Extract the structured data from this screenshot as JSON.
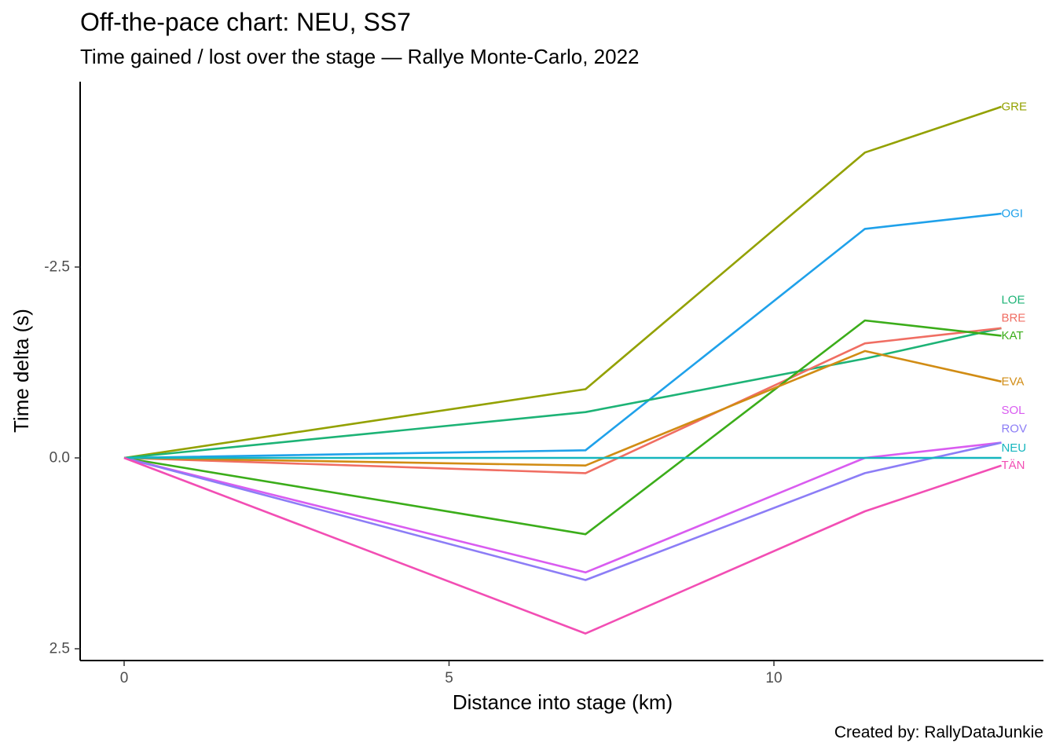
{
  "title": "Off-the-pace chart: NEU, SS7",
  "subtitle": "Time gained / lost over the stage — Rallye Monte-Carlo, 2022",
  "caption": "Created by: RallyDataJunkie",
  "chart_data": {
    "type": "line",
    "title": "Off-the-pace chart: NEU, SS7",
    "subtitle": "Time gained / lost over the stage — Rallye Monte-Carlo, 2022",
    "xlabel": "Distance into stage (km)",
    "ylabel": "Time delta (s)",
    "xlim": [
      -0.67,
      14.15
    ],
    "ylim": [
      2.6,
      -4.95
    ],
    "y_reversed": true,
    "grid": false,
    "legend": "none (labels at line ends)",
    "x_ticks": [
      0,
      5,
      10
    ],
    "x_tick_labels": [
      "0",
      "5",
      "10"
    ],
    "y_ticks": [
      -2.5,
      0,
      2.5
    ],
    "y_tick_labels": [
      "-2.5",
      "0.0",
      "2.5"
    ],
    "x": [
      0,
      7.1,
      11.4,
      13.5
    ],
    "series": [
      {
        "name": "GRE",
        "color": "#93A100",
        "values": [
          0,
          -0.9,
          -4.0,
          -4.6
        ],
        "label_y": -4.6
      },
      {
        "name": "OGI",
        "color": "#1FA1EA",
        "values": [
          0,
          -0.1,
          -3.0,
          -3.2
        ],
        "label_y": -3.2
      },
      {
        "name": "LOE",
        "color": "#1DB376",
        "values": [
          0,
          -0.6,
          -1.3,
          -1.7
        ],
        "label_y": -2.07
      },
      {
        "name": "BRE",
        "color": "#F06E63",
        "values": [
          0,
          0.2,
          -1.5,
          -1.7
        ],
        "label_y": -1.83
      },
      {
        "name": "KAT",
        "color": "#3BAD1A",
        "values": [
          0,
          1.0,
          -1.8,
          -1.6
        ],
        "label_y": -1.6
      },
      {
        "name": "EVA",
        "color": "#D18C14",
        "values": [
          0,
          0.1,
          -1.4,
          -1.0
        ],
        "label_y": -1.0
      },
      {
        "name": "SOL",
        "color": "#D95CF0",
        "values": [
          0,
          1.5,
          0.0,
          -0.2
        ],
        "label_y": -0.62
      },
      {
        "name": "ROV",
        "color": "#8C7DF6",
        "values": [
          0,
          1.6,
          0.2,
          -0.2
        ],
        "label_y": -0.38
      },
      {
        "name": "NEU",
        "color": "#15B6BE",
        "values": [
          0,
          0,
          0,
          0
        ],
        "label_y": -0.13
      },
      {
        "name": "TÄN",
        "color": "#F24EB4",
        "values": [
          0,
          2.3,
          0.7,
          0.1
        ],
        "label_y": 0.1
      }
    ]
  }
}
